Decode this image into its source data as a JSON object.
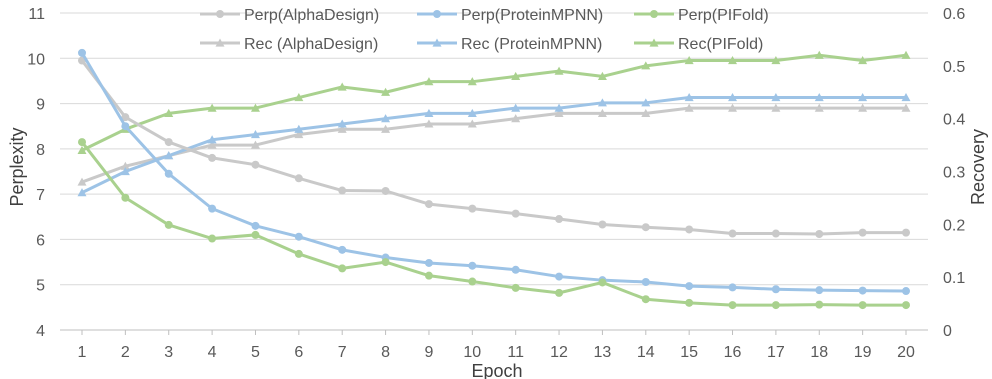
{
  "chart_data": {
    "type": "line",
    "x": [
      1,
      2,
      3,
      4,
      5,
      6,
      7,
      8,
      9,
      10,
      11,
      12,
      13,
      14,
      15,
      16,
      17,
      18,
      19,
      20
    ],
    "xlabel": "Epoch",
    "ylabel": "Perplexity",
    "y2label": "Recovery",
    "ylim": [
      4,
      11
    ],
    "y2lim": [
      0,
      0.6
    ],
    "yticks": [
      "4",
      "5",
      "6",
      "7",
      "8",
      "9",
      "10",
      "11"
    ],
    "y2ticks": [
      "0",
      "0.1",
      "0.2",
      "0.3",
      "0.4",
      "0.5",
      "0.6"
    ],
    "xticks": [
      "1",
      "2",
      "3",
      "4",
      "5",
      "6",
      "7",
      "8",
      "9",
      "10",
      "11",
      "12",
      "13",
      "14",
      "15",
      "16",
      "17",
      "18",
      "19",
      "20"
    ],
    "grid": "horizontal",
    "legend_position": "top",
    "series": [
      {
        "name": "Perp(AlphaDesign)",
        "axis": "left",
        "marker": "circle",
        "color": "#c9c9c9",
        "values": [
          9.95,
          8.7,
          8.15,
          7.8,
          7.65,
          7.35,
          7.08,
          7.07,
          6.78,
          6.68,
          6.57,
          6.45,
          6.33,
          6.27,
          6.22,
          6.13,
          6.13,
          6.12,
          6.15,
          6.15
        ]
      },
      {
        "name": "Perp(ProteinMPNN)",
        "axis": "left",
        "marker": "circle",
        "color": "#9dc3e6",
        "values": [
          10.12,
          8.5,
          7.45,
          6.68,
          6.3,
          6.06,
          5.77,
          5.6,
          5.48,
          5.42,
          5.33,
          5.18,
          5.1,
          5.06,
          4.97,
          4.94,
          4.9,
          4.88,
          4.87,
          4.86
        ]
      },
      {
        "name": "Perp(PIFold)",
        "axis": "left",
        "marker": "circle",
        "color": "#a9d18e",
        "values": [
          8.15,
          6.92,
          6.32,
          6.02,
          6.1,
          5.68,
          5.36,
          5.5,
          5.2,
          5.07,
          4.93,
          4.82,
          5.05,
          4.68,
          4.6,
          4.55,
          4.55,
          4.56,
          4.55,
          4.55
        ]
      },
      {
        "name": "Rec (AlphaDesign)",
        "axis": "right",
        "marker": "triangle",
        "color": "#c9c9c9",
        "values": [
          0.28,
          0.31,
          0.33,
          0.35,
          0.35,
          0.37,
          0.38,
          0.38,
          0.39,
          0.39,
          0.4,
          0.41,
          0.41,
          0.41,
          0.42,
          0.42,
          0.42,
          0.42,
          0.42,
          0.42
        ]
      },
      {
        "name": "Rec (ProteinMPNN)",
        "axis": "right",
        "marker": "triangle",
        "color": "#9dc3e6",
        "values": [
          0.26,
          0.3,
          0.33,
          0.36,
          0.37,
          0.38,
          0.39,
          0.4,
          0.41,
          0.41,
          0.42,
          0.42,
          0.43,
          0.43,
          0.44,
          0.44,
          0.44,
          0.44,
          0.44,
          0.44
        ]
      },
      {
        "name": "Rec(PIFold)",
        "axis": "right",
        "marker": "triangle",
        "color": "#a9d18e",
        "values": [
          0.34,
          0.38,
          0.41,
          0.42,
          0.42,
          0.44,
          0.46,
          0.45,
          0.47,
          0.47,
          0.48,
          0.49,
          0.48,
          0.5,
          0.51,
          0.51,
          0.51,
          0.52,
          0.51,
          0.52
        ]
      }
    ]
  }
}
